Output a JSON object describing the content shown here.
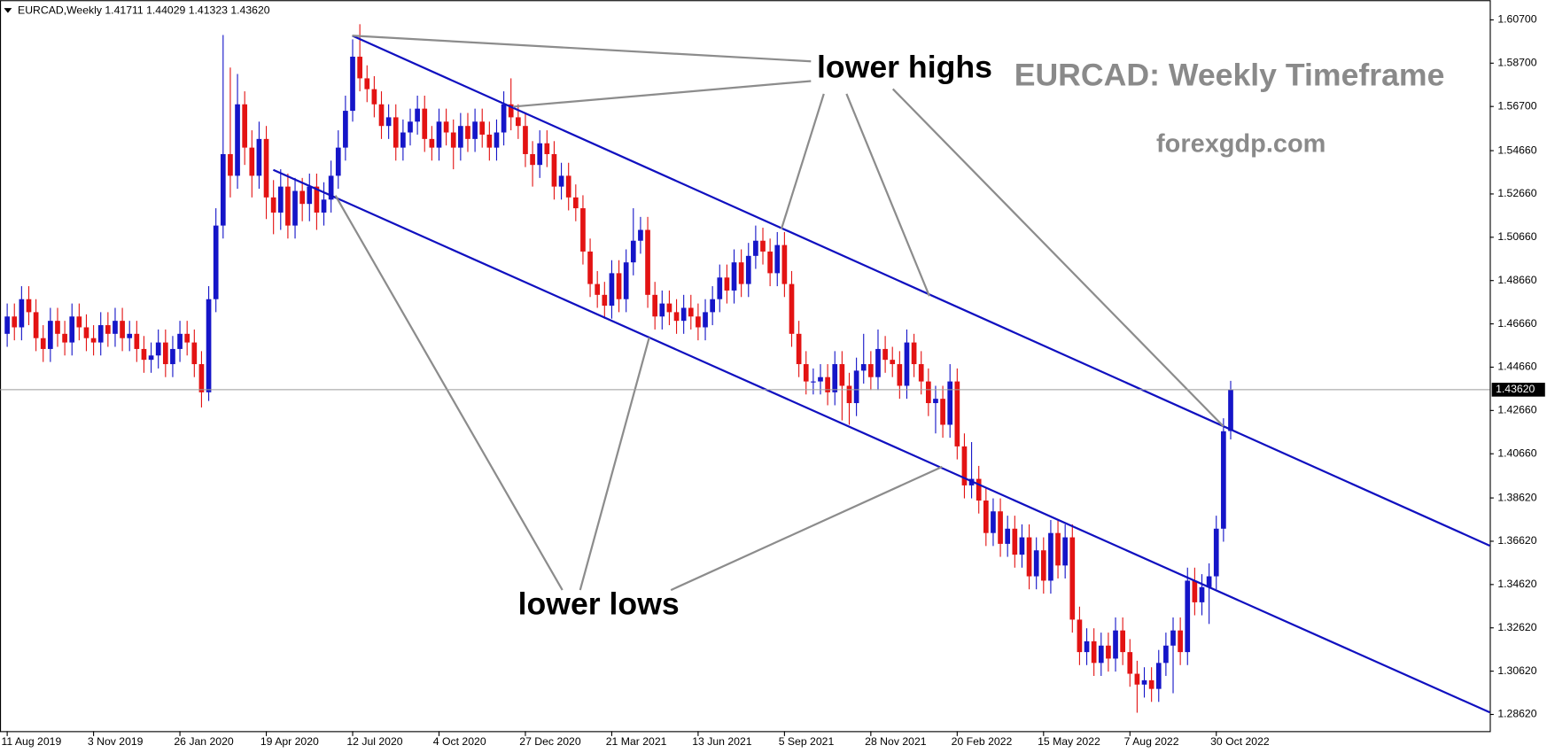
{
  "chart_data": {
    "type": "candlestick",
    "header": "EURCAD,Weekly  1.41711 1.44029 1.41323 1.43620",
    "title": "EURCAD: Weekly Timeframe",
    "subtitle": "forexgdp.com",
    "annotations": [
      "lower highs",
      "lower lows"
    ],
    "last_price_label": "1.43620",
    "up_color": "#1515c8",
    "down_color": "#e31313",
    "xlim": [
      -1,
      206
    ],
    "xticks": [
      {
        "value": 0,
        "label": "11 Aug 2019"
      },
      {
        "value": 12,
        "label": "3 Nov 2019"
      },
      {
        "value": 24,
        "label": "26 Jan 2020"
      },
      {
        "value": 36,
        "label": "19 Apr 2020"
      },
      {
        "value": 48,
        "label": "12 Jul 2020"
      },
      {
        "value": 60,
        "label": "4 Oct 2020"
      },
      {
        "value": 72,
        "label": "27 Dec 2020"
      },
      {
        "value": 84,
        "label": "21 Mar 2021"
      },
      {
        "value": 96,
        "label": "13 Jun 2021"
      },
      {
        "value": 108,
        "label": "5 Sep 2021"
      },
      {
        "value": 120,
        "label": "28 Nov 2021"
      },
      {
        "value": 132,
        "label": "20 Feb 2022"
      },
      {
        "value": 144,
        "label": "15 May 2022"
      },
      {
        "value": 156,
        "label": "7 Aug 2022"
      },
      {
        "value": 168,
        "label": "30 Oct 2022"
      }
    ],
    "ylim": [
      1.2785,
      1.6161
    ],
    "yticks": [
      {
        "value": 1.607,
        "label": "1.60700"
      },
      {
        "value": 1.587,
        "label": "1.58700"
      },
      {
        "value": 1.567,
        "label": "1.56700"
      },
      {
        "value": 1.5466,
        "label": "1.54660"
      },
      {
        "value": 1.5266,
        "label": "1.52660"
      },
      {
        "value": 1.5066,
        "label": "1.50660"
      },
      {
        "value": 1.4866,
        "label": "1.48660"
      },
      {
        "value": 1.4666,
        "label": "1.46660"
      },
      {
        "value": 1.4466,
        "label": "1.44660"
      },
      {
        "value": 1.4266,
        "label": "1.42660"
      },
      {
        "value": 1.4066,
        "label": "1.40660"
      },
      {
        "value": 1.3862,
        "label": "1.38620"
      },
      {
        "value": 1.3662,
        "label": "1.36620"
      },
      {
        "value": 1.3462,
        "label": "1.34620"
      },
      {
        "value": 1.3262,
        "label": "1.32620"
      },
      {
        "value": 1.3062,
        "label": "1.30620"
      },
      {
        "value": 1.2862,
        "label": "1.28620"
      }
    ],
    "open": [
      1.462,
      1.47,
      1.465,
      1.478,
      1.472,
      1.46,
      1.455,
      1.468,
      1.462,
      1.458,
      1.47,
      1.465,
      1.46,
      1.458,
      1.466,
      1.462,
      1.468,
      1.46,
      1.462,
      1.455,
      1.45,
      1.452,
      1.458,
      1.448,
      1.455,
      1.462,
      1.458,
      1.448,
      1.435,
      1.478,
      1.512,
      1.545,
      1.535,
      1.568,
      1.548,
      1.535,
      1.552,
      1.525,
      1.518,
      1.53,
      1.512,
      1.528,
      1.522,
      1.53,
      1.518,
      1.524,
      1.535,
      1.548,
      1.565,
      1.59,
      1.58,
      1.575,
      1.568,
      1.558,
      1.562,
      1.548,
      1.555,
      1.56,
      1.566,
      1.552,
      1.548,
      1.56,
      1.555,
      1.548,
      1.558,
      1.552,
      1.56,
      1.554,
      1.548,
      1.555,
      1.568,
      1.562,
      1.558,
      1.545,
      1.54,
      1.55,
      1.545,
      1.53,
      1.535,
      1.525,
      1.52,
      1.5,
      1.485,
      1.48,
      1.475,
      1.49,
      1.478,
      1.495,
      1.505,
      1.51,
      1.48,
      1.47,
      1.476,
      1.472,
      1.468,
      1.474,
      1.47,
      1.465,
      1.472,
      1.478,
      1.488,
      1.482,
      1.495,
      1.485,
      1.498,
      1.505,
      1.5,
      1.49,
      1.503,
      1.485,
      1.462,
      1.448,
      1.44,
      1.44,
      1.442,
      1.435,
      1.448,
      1.438,
      1.43,
      1.445,
      1.448,
      1.442,
      1.455,
      1.45,
      1.448,
      1.438,
      1.458,
      1.448,
      1.44,
      1.43,
      1.432,
      1.42,
      1.44,
      1.41,
      1.392,
      1.395,
      1.385,
      1.37,
      1.38,
      1.365,
      1.372,
      1.36,
      1.368,
      1.35,
      1.362,
      1.348,
      1.37,
      1.355,
      1.368,
      1.33,
      1.315,
      1.32,
      1.31,
      1.318,
      1.312,
      1.325,
      1.315,
      1.305,
      1.3,
      1.302,
      1.298,
      1.31,
      1.318,
      1.325,
      1.315,
      1.348,
      1.338,
      1.345,
      1.35,
      1.372,
      1.41711
    ],
    "high": [
      1.476,
      1.476,
      1.484,
      1.484,
      1.478,
      1.466,
      1.474,
      1.474,
      1.468,
      1.476,
      1.476,
      1.471,
      1.466,
      1.472,
      1.472,
      1.474,
      1.474,
      1.468,
      1.468,
      1.461,
      1.458,
      1.464,
      1.464,
      1.461,
      1.468,
      1.468,
      1.464,
      1.454,
      1.484,
      1.52,
      1.6,
      1.585,
      1.582,
      1.574,
      1.556,
      1.56,
      1.558,
      1.533,
      1.538,
      1.536,
      1.534,
      1.534,
      1.536,
      1.536,
      1.532,
      1.542,
      1.556,
      1.572,
      1.598,
      1.605,
      1.586,
      1.581,
      1.574,
      1.568,
      1.568,
      1.561,
      1.566,
      1.572,
      1.572,
      1.558,
      1.566,
      1.566,
      1.561,
      1.564,
      1.564,
      1.566,
      1.566,
      1.56,
      1.561,
      1.574,
      1.58,
      1.568,
      1.564,
      1.551,
      1.556,
      1.556,
      1.551,
      1.541,
      1.541,
      1.531,
      1.526,
      1.506,
      1.491,
      1.486,
      1.496,
      1.496,
      1.501,
      1.52,
      1.516,
      1.516,
      1.486,
      1.482,
      1.482,
      1.478,
      1.48,
      1.48,
      1.476,
      1.478,
      1.484,
      1.494,
      1.494,
      1.501,
      1.501,
      1.504,
      1.512,
      1.511,
      1.506,
      1.509,
      1.509,
      1.491,
      1.468,
      1.454,
      1.446,
      1.448,
      1.448,
      1.454,
      1.454,
      1.444,
      1.451,
      1.462,
      1.454,
      1.464,
      1.461,
      1.456,
      1.454,
      1.464,
      1.462,
      1.454,
      1.446,
      1.438,
      1.438,
      1.448,
      1.446,
      1.416,
      1.412,
      1.401,
      1.391,
      1.386,
      1.386,
      1.378,
      1.378,
      1.374,
      1.374,
      1.368,
      1.368,
      1.376,
      1.376,
      1.374,
      1.374,
      1.336,
      1.326,
      1.326,
      1.324,
      1.324,
      1.331,
      1.331,
      1.321,
      1.311,
      1.308,
      1.308,
      1.316,
      1.324,
      1.331,
      1.331,
      1.354,
      1.354,
      1.351,
      1.356,
      1.378,
      1.423,
      1.44029
    ],
    "low": [
      1.456,
      1.459,
      1.459,
      1.466,
      1.454,
      1.449,
      1.449,
      1.456,
      1.452,
      1.452,
      1.459,
      1.454,
      1.452,
      1.452,
      1.456,
      1.456,
      1.454,
      1.454,
      1.449,
      1.444,
      1.444,
      1.446,
      1.442,
      1.442,
      1.449,
      1.452,
      1.442,
      1.428,
      1.431,
      1.472,
      1.506,
      1.525,
      1.529,
      1.54,
      1.525,
      1.529,
      1.515,
      1.508,
      1.51,
      1.506,
      1.506,
      1.514,
      1.514,
      1.51,
      1.512,
      1.518,
      1.529,
      1.542,
      1.56,
      1.574,
      1.569,
      1.562,
      1.552,
      1.552,
      1.542,
      1.542,
      1.549,
      1.554,
      1.546,
      1.542,
      1.542,
      1.549,
      1.538,
      1.542,
      1.546,
      1.546,
      1.548,
      1.542,
      1.542,
      1.549,
      1.556,
      1.552,
      1.539,
      1.53,
      1.534,
      1.539,
      1.524,
      1.524,
      1.519,
      1.514,
      1.494,
      1.479,
      1.474,
      1.469,
      1.469,
      1.472,
      1.472,
      1.489,
      1.499,
      1.474,
      1.464,
      1.464,
      1.466,
      1.462,
      1.462,
      1.464,
      1.459,
      1.459,
      1.466,
      1.472,
      1.476,
      1.476,
      1.479,
      1.479,
      1.492,
      1.494,
      1.484,
      1.484,
      1.479,
      1.456,
      1.442,
      1.434,
      1.434,
      1.434,
      1.429,
      1.429,
      1.422,
      1.42,
      1.424,
      1.439,
      1.436,
      1.436,
      1.444,
      1.442,
      1.432,
      1.432,
      1.442,
      1.434,
      1.424,
      1.416,
      1.414,
      1.414,
      1.404,
      1.386,
      1.386,
      1.379,
      1.364,
      1.364,
      1.359,
      1.359,
      1.354,
      1.354,
      1.344,
      1.344,
      1.342,
      1.342,
      1.349,
      1.349,
      1.324,
      1.309,
      1.309,
      1.304,
      1.304,
      1.306,
      1.306,
      1.309,
      1.299,
      1.287,
      1.294,
      1.292,
      1.292,
      1.304,
      1.296,
      1.309,
      1.309,
      1.332,
      1.332,
      1.328,
      1.344,
      1.366,
      1.41323
    ],
    "close": [
      1.47,
      1.465,
      1.478,
      1.472,
      1.46,
      1.455,
      1.468,
      1.462,
      1.458,
      1.47,
      1.465,
      1.46,
      1.458,
      1.466,
      1.462,
      1.468,
      1.46,
      1.462,
      1.455,
      1.45,
      1.452,
      1.458,
      1.448,
      1.455,
      1.462,
      1.458,
      1.448,
      1.435,
      1.478,
      1.512,
      1.545,
      1.535,
      1.568,
      1.548,
      1.535,
      1.552,
      1.525,
      1.518,
      1.53,
      1.512,
      1.528,
      1.522,
      1.53,
      1.518,
      1.524,
      1.535,
      1.548,
      1.565,
      1.59,
      1.58,
      1.575,
      1.568,
      1.558,
      1.562,
      1.548,
      1.555,
      1.56,
      1.566,
      1.552,
      1.548,
      1.56,
      1.555,
      1.548,
      1.558,
      1.552,
      1.56,
      1.554,
      1.548,
      1.555,
      1.568,
      1.562,
      1.558,
      1.545,
      1.54,
      1.55,
      1.545,
      1.53,
      1.535,
      1.525,
      1.52,
      1.5,
      1.485,
      1.48,
      1.475,
      1.49,
      1.478,
      1.495,
      1.505,
      1.51,
      1.48,
      1.47,
      1.476,
      1.472,
      1.468,
      1.474,
      1.47,
      1.465,
      1.472,
      1.478,
      1.488,
      1.482,
      1.495,
      1.485,
      1.498,
      1.505,
      1.5,
      1.49,
      1.503,
      1.485,
      1.462,
      1.448,
      1.44,
      1.44,
      1.442,
      1.435,
      1.448,
      1.438,
      1.43,
      1.445,
      1.448,
      1.442,
      1.455,
      1.45,
      1.448,
      1.438,
      1.458,
      1.448,
      1.44,
      1.43,
      1.432,
      1.42,
      1.44,
      1.41,
      1.392,
      1.395,
      1.385,
      1.37,
      1.38,
      1.365,
      1.372,
      1.36,
      1.368,
      1.35,
      1.362,
      1.348,
      1.37,
      1.355,
      1.368,
      1.33,
      1.315,
      1.32,
      1.31,
      1.318,
      1.312,
      1.325,
      1.315,
      1.305,
      1.3,
      1.302,
      1.298,
      1.31,
      1.318,
      1.325,
      1.315,
      1.348,
      1.338,
      1.345,
      1.35,
      1.372,
      1.417,
      1.4362
    ]
  }
}
